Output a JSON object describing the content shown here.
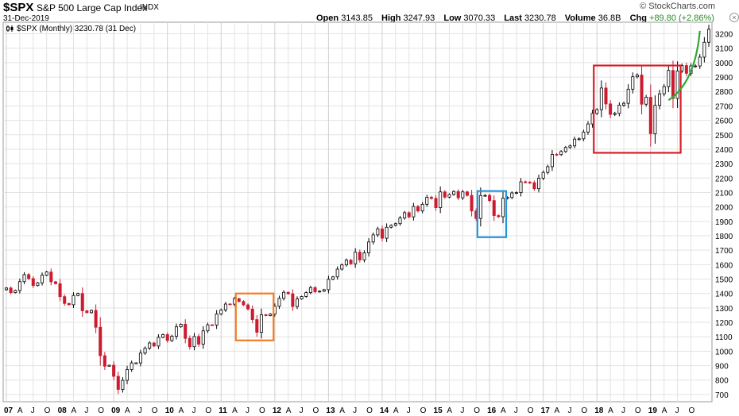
{
  "header": {
    "symbol": "$SPX",
    "name": "S&P 500 Large Cap Index",
    "exchange": "INDX",
    "date": "31-Dec-2019",
    "brand": "© StockCharts.com",
    "open_label": "Open",
    "open": "3143.85",
    "high_label": "High",
    "high": "3247.93",
    "low_label": "Low",
    "low": "3070.33",
    "last_label": "Last",
    "last": "3230.78",
    "volume_label": "Volume",
    "volume": "36.8B",
    "chg_label": "Chg",
    "chg": "+89.80 (+2.86%)"
  },
  "legend": {
    "text": "$SPX (Monthly) 3230.78 (31 Dec)"
  },
  "colors": {
    "up": "#000000",
    "down": "#cc1a2e",
    "grid": "#e3e3e3",
    "box_orange": "#f57c20",
    "box_blue": "#2196e0",
    "box_red": "#d81e2a",
    "curve": "#2ea836"
  },
  "chart_data": {
    "type": "candlestick",
    "ylim": [
      650,
      3280
    ],
    "yticks": [
      700,
      800,
      900,
      1000,
      1100,
      1200,
      1300,
      1400,
      1500,
      1600,
      1700,
      1800,
      1900,
      2000,
      2100,
      2200,
      2300,
      2400,
      2500,
      2600,
      2700,
      2800,
      2900,
      3000,
      3100,
      3200
    ],
    "x_labels": [
      "07",
      "A",
      "J",
      "O",
      "08",
      "A",
      "J",
      "O",
      "09",
      "A",
      "J",
      "O",
      "10",
      "A",
      "J",
      "O",
      "11",
      "A",
      "J",
      "O",
      "12",
      "A",
      "J",
      "O",
      "13",
      "A",
      "J",
      "O",
      "14",
      "A",
      "J",
      "O",
      "15",
      "A",
      "J",
      "O",
      "16",
      "A",
      "J",
      "O",
      "17",
      "A",
      "J",
      "O",
      "18",
      "A",
      "J",
      "O",
      "19",
      "A",
      "J",
      "O"
    ],
    "close": [
      1438,
      1406,
      1421,
      1482,
      1531,
      1503,
      1455,
      1474,
      1527,
      1549,
      1481,
      1468,
      1378,
      1331,
      1322,
      1386,
      1400,
      1280,
      1267,
      1283,
      1166,
      969,
      896,
      903,
      826,
      735,
      798,
      873,
      919,
      919,
      987,
      1021,
      1057,
      1036,
      1096,
      1115,
      1074,
      1104,
      1169,
      1187,
      1089,
      1031,
      1102,
      1049,
      1141,
      1183,
      1181,
      1258,
      1286,
      1327,
      1326,
      1364,
      1345,
      1321,
      1292,
      1219,
      1131,
      1253,
      1247,
      1258,
      1312,
      1366,
      1408,
      1398,
      1310,
      1362,
      1379,
      1406,
      1441,
      1412,
      1416,
      1426,
      1498,
      1515,
      1569,
      1598,
      1631,
      1606,
      1686,
      1633,
      1682,
      1757,
      1806,
      1848,
      1783,
      1859,
      1872,
      1884,
      1924,
      1960,
      1931,
      2003,
      1972,
      2018,
      2067,
      2059,
      1995,
      2104,
      2068,
      2086,
      2107,
      2063,
      2104,
      2080,
      1972,
      1920,
      2079,
      2080,
      2044,
      1940,
      1932,
      2060,
      2065,
      2097,
      2099,
      2174,
      2171,
      2168,
      2126,
      2199,
      2239,
      2279,
      2364,
      2363,
      2384,
      2412,
      2423,
      2470,
      2472,
      2519,
      2575,
      2648,
      2674,
      2824,
      2714,
      2641,
      2648,
      2705,
      2718,
      2816,
      2902,
      2914,
      2712,
      2760,
      2507,
      2704,
      2784,
      2834,
      2946,
      2752,
      2942,
      2980,
      2926,
      2977,
      2977,
      3038,
      3141,
      3231
    ],
    "high_points_note": ""
  }
}
